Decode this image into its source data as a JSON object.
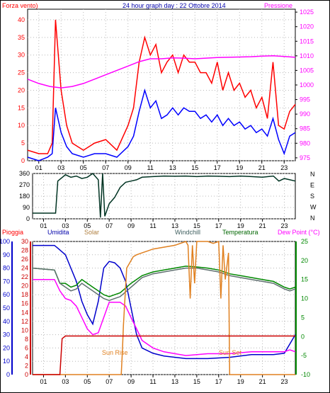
{
  "chart_data": [
    {
      "type": "line",
      "title": "24 hour graph day : 22 Ottobre 2014",
      "left_axis_label": "Forza vento)",
      "right_axis_label": "Pressione",
      "x_ticks": [
        "01",
        "03",
        "05",
        "07",
        "09",
        "11",
        "13",
        "15",
        "17",
        "19",
        "21",
        "23"
      ],
      "left_ticks": [
        "0",
        "5",
        "10",
        "15",
        "20",
        "25",
        "30",
        "35",
        "40"
      ],
      "right_ticks": [
        "975",
        "980",
        "985",
        "990",
        "995",
        "1000",
        "1005",
        "1010",
        "1015",
        "1020",
        "1025"
      ],
      "ylim_left": [
        0,
        43
      ],
      "ylim_right": [
        974,
        1026
      ],
      "colors": {
        "gust": "#ff0000",
        "wind": "#0000ff",
        "pressure": "#ff00ff"
      },
      "series": [
        {
          "key": "gust",
          "axis": "left",
          "x": [
            0.0,
            1.0,
            1.8,
            2.2,
            2.5,
            3.0,
            3.5,
            4.0,
            5.0,
            6.0,
            7.0,
            8.0,
            9.0,
            9.5,
            10.0,
            10.5,
            11.0,
            11.5,
            12.0,
            12.5,
            13.0,
            13.5,
            14.0,
            14.5,
            15.0,
            15.5,
            16.0,
            16.5,
            17.0,
            17.5,
            18.0,
            18.5,
            19.0,
            19.5,
            20.0,
            20.5,
            21.0,
            21.5,
            22.0,
            22.5,
            23.0,
            23.5,
            24.0
          ],
          "y": [
            3,
            2,
            2,
            5,
            40,
            20,
            10,
            5,
            3,
            5,
            6,
            3,
            10,
            15,
            28,
            35,
            30,
            33,
            25,
            28,
            30,
            25,
            30,
            28,
            28,
            25,
            25,
            22,
            28,
            20,
            25,
            20,
            22,
            18,
            20,
            15,
            18,
            12,
            28,
            10,
            9,
            14,
            16
          ]
        },
        {
          "key": "wind",
          "axis": "left",
          "x": [
            0.0,
            1.0,
            1.8,
            2.2,
            2.5,
            3.0,
            3.5,
            4.0,
            5.0,
            6.0,
            7.0,
            8.0,
            9.0,
            9.5,
            10.0,
            10.5,
            11.0,
            11.5,
            12.0,
            12.5,
            13.0,
            13.5,
            14.0,
            14.5,
            15.0,
            15.5,
            16.0,
            16.5,
            17.0,
            17.5,
            18.0,
            18.5,
            19.0,
            19.5,
            20.0,
            20.5,
            21.0,
            21.5,
            22.0,
            22.5,
            23.0,
            23.5,
            24.0
          ],
          "y": [
            1,
            0,
            1,
            2,
            15,
            8,
            4,
            2,
            1,
            2,
            2,
            1,
            4,
            7,
            14,
            20,
            15,
            17,
            12,
            13,
            15,
            13,
            15,
            14,
            14,
            12,
            13,
            11,
            13,
            10,
            12,
            10,
            11,
            9,
            10,
            8,
            9,
            7,
            12,
            6,
            2,
            7,
            8
          ]
        },
        {
          "key": "pressure",
          "axis": "right",
          "x": [
            0.0,
            1.0,
            2.0,
            3.0,
            4.0,
            5.0,
            6.0,
            7.0,
            8.0,
            9.0,
            10.0,
            11.0,
            12.0,
            13.0,
            14.0,
            15.0,
            16.0,
            17.0,
            18.0,
            19.0,
            20.0,
            21.0,
            22.0,
            23.0,
            24.0
          ],
          "y": [
            1002,
            1000.5,
            999.5,
            999,
            999.5,
            1000.5,
            1002,
            1003.5,
            1005,
            1006.5,
            1008,
            1009,
            1009,
            1009.3,
            1009.2,
            1009,
            1009.2,
            1009.4,
            1009.5,
            1009.6,
            1009.7,
            1009.9,
            1010,
            1009.8,
            1009.5
          ]
        }
      ]
    },
    {
      "type": "line",
      "title": "",
      "left_ticks": [
        "0",
        "90",
        "180",
        "270",
        "360"
      ],
      "right_labels": [
        "N",
        "W",
        "S",
        "E",
        "N"
      ],
      "x_ticks": [
        "01",
        "03",
        "05",
        "07",
        "09",
        "11",
        "13",
        "15",
        "17",
        "19",
        "21",
        "23"
      ],
      "ylim": [
        0,
        360
      ],
      "colors": {
        "direction": "#003322"
      },
      "series": [
        {
          "key": "direction",
          "x": [
            0.0,
            1.0,
            2.0,
            2.1,
            2.3,
            3.0,
            3.5,
            4.0,
            4.5,
            5.0,
            5.5,
            6.0,
            6.2,
            6.4,
            6.6,
            7.0,
            7.5,
            8.0,
            8.5,
            9.0,
            9.5,
            10.0,
            11.0,
            12.0,
            13.0,
            14.0,
            15.0,
            16.0,
            17.0,
            18.0,
            19.0,
            20.0,
            21.0,
            22.0,
            22.5,
            23.0,
            23.5,
            24.0
          ],
          "y": [
            45,
            45,
            45,
            45,
            300,
            350,
            330,
            340,
            320,
            330,
            360,
            310,
            10,
            360,
            20,
            120,
            170,
            250,
            290,
            300,
            310,
            330,
            335,
            340,
            338,
            340,
            335,
            340,
            338,
            335,
            340,
            335,
            330,
            340,
            300,
            320,
            310,
            300
          ]
        }
      ]
    },
    {
      "type": "line",
      "labels": [
        "Pioggia",
        "Umidita",
        "Solar",
        "Windchill",
        "Temperatura",
        "Dew Point (°C)"
      ],
      "annotations": [
        "Sun Rise",
        "Sun Set"
      ],
      "x_ticks": [
        "01",
        "03",
        "05",
        "07",
        "09",
        "11",
        "13",
        "15",
        "17",
        "19",
        "21",
        "23"
      ],
      "humidity_ticks": [
        "0",
        "10",
        "20",
        "30",
        "40",
        "50",
        "60",
        "70",
        "80",
        "90",
        "100"
      ],
      "rain_ticks": [
        "0",
        "2",
        "4",
        "6",
        "8",
        "10",
        "12",
        "14",
        "16",
        "18",
        "20",
        "22",
        "24",
        "26",
        "28",
        "30"
      ],
      "temp_ticks": [
        "-10",
        "-5",
        "0",
        "5",
        "10",
        "15",
        "20",
        "25"
      ],
      "ylim_humidity": [
        0,
        100
      ],
      "ylim_temp": [
        -10,
        25
      ],
      "colors": {
        "rain": "#cc0000",
        "humidity": "#0000cc",
        "solar": "#e08020",
        "windchill": "#607070",
        "temperature": "#008800",
        "dewpoint": "#ff00ff"
      },
      "series": [
        {
          "key": "humidity",
          "axis": "humidity",
          "x": [
            0.0,
            2.0,
            2.3,
            3.0,
            3.5,
            4.0,
            4.5,
            5.0,
            5.5,
            6.0,
            6.5,
            7.0,
            7.5,
            8.0,
            8.5,
            9.0,
            9.5,
            10.0,
            11.0,
            12.0,
            14.0,
            16.0,
            18.0,
            20.0,
            22.0,
            23.0,
            23.5,
            24.0
          ],
          "y": [
            97,
            97,
            95,
            90,
            80,
            70,
            55,
            45,
            38,
            55,
            80,
            85,
            84,
            80,
            70,
            50,
            30,
            20,
            16,
            14,
            12,
            12,
            13,
            15,
            15,
            16,
            23,
            30
          ]
        },
        {
          "key": "dewpoint",
          "axis": "temp",
          "x": [
            0.0,
            2.0,
            2.5,
            3.0,
            3.5,
            4.0,
            4.5,
            5.0,
            5.5,
            6.0,
            6.5,
            7.0,
            8.0,
            8.5,
            9.0,
            9.5,
            10.0,
            11.0,
            12.0,
            14.0,
            16.0,
            18.0,
            20.0,
            22.0,
            23.0,
            23.5,
            24.0
          ],
          "y": [
            15,
            15,
            12,
            10,
            9.5,
            8,
            5,
            2,
            0.5,
            1,
            5,
            9,
            9,
            8,
            5,
            2,
            -1,
            -3,
            -4,
            -5,
            -4.5,
            -4.5,
            -4,
            -4,
            -4,
            -3.5,
            -4
          ]
        },
        {
          "key": "temperature",
          "axis": "temp",
          "x": [
            0.0,
            2.0,
            2.5,
            3.0,
            3.5,
            4.0,
            4.5,
            5.0,
            5.5,
            6.0,
            6.5,
            7.0,
            7.5,
            8.0,
            9.0,
            10.0,
            11.0,
            12.0,
            13.0,
            14.0,
            15.0,
            16.0,
            17.0,
            18.0,
            19.0,
            20.0,
            21.0,
            22.0,
            23.0,
            23.5,
            24.0
          ],
          "y": [
            18,
            17.5,
            14,
            14,
            13,
            13.5,
            15,
            14,
            13,
            12,
            11,
            10.5,
            11,
            11.5,
            14,
            16,
            17,
            17.5,
            18,
            18.5,
            18.3,
            18,
            17.5,
            16.5,
            16,
            15.5,
            15,
            14.5,
            13,
            12.5,
            13
          ]
        },
        {
          "key": "windchill",
          "axis": "temp",
          "x": [
            0.0,
            2.0,
            2.5,
            3.0,
            3.5,
            4.0,
            4.5,
            5.0,
            5.5,
            6.0,
            6.5,
            7.0,
            7.5,
            8.0,
            9.0,
            10.0,
            11.0,
            12.0,
            13.0,
            14.0,
            15.0,
            16.0,
            17.0,
            18.0,
            19.0,
            20.0,
            21.0,
            22.0,
            23.0,
            23.5,
            24.0
          ],
          "y": [
            18,
            17.5,
            14,
            13,
            12,
            12.5,
            14,
            13,
            12,
            11,
            10,
            9.5,
            10,
            10.5,
            13,
            15.5,
            16.5,
            17,
            17.5,
            18,
            18,
            17.5,
            17,
            16,
            15.5,
            15,
            14.5,
            14,
            12.5,
            12,
            12.5
          ]
        },
        {
          "key": "solar",
          "axis": "temp",
          "x": [
            0.0,
            8.1,
            8.2,
            8.3,
            8.6,
            9.0,
            9.2,
            9.5,
            10.0,
            10.5,
            11.0,
            13.0,
            14.0,
            14.2,
            14.4,
            14.6,
            14.8,
            15.0,
            15.5,
            16.0,
            16.5,
            17.0,
            17.2,
            17.4,
            17.6,
            17.9,
            18.0,
            24.0
          ],
          "y": [
            -10,
            -10,
            -4,
            3,
            18,
            20,
            21,
            21.5,
            22,
            22.5,
            23,
            24,
            25,
            24,
            10,
            24,
            14,
            25,
            25,
            25,
            24.5,
            25,
            10,
            24,
            15,
            22,
            -10,
            -10
          ]
        },
        {
          "key": "rain",
          "axis": "humidity",
          "x": [
            0.0,
            1.5,
            1.6,
            2.5,
            2.7,
            3.0,
            24.0
          ],
          "y": [
            0,
            0,
            0,
            0,
            27,
            29,
            29
          ]
        }
      ]
    }
  ]
}
